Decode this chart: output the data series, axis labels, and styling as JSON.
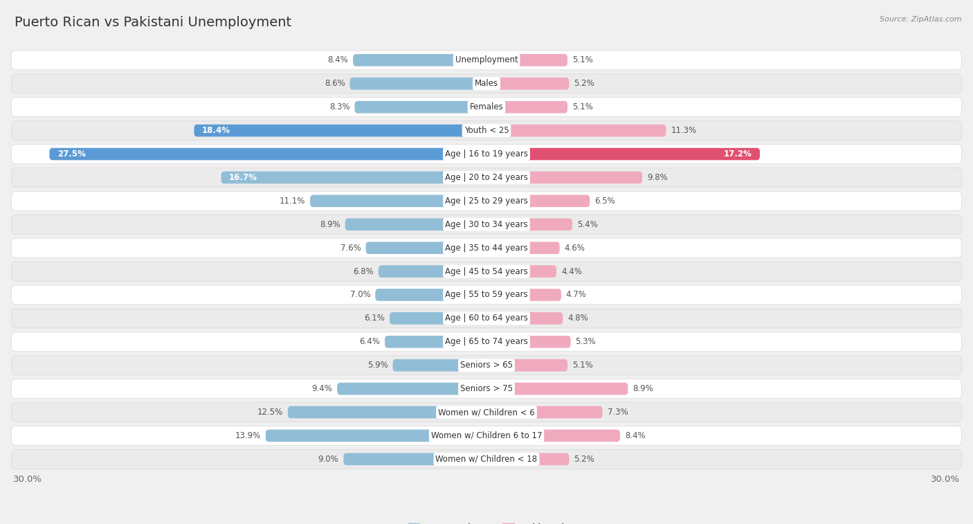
{
  "title": "Puerto Rican vs Pakistani Unemployment",
  "source": "Source: ZipAtlas.com",
  "categories": [
    "Unemployment",
    "Males",
    "Females",
    "Youth < 25",
    "Age | 16 to 19 years",
    "Age | 20 to 24 years",
    "Age | 25 to 29 years",
    "Age | 30 to 34 years",
    "Age | 35 to 44 years",
    "Age | 45 to 54 years",
    "Age | 55 to 59 years",
    "Age | 60 to 64 years",
    "Age | 65 to 74 years",
    "Seniors > 65",
    "Seniors > 75",
    "Women w/ Children < 6",
    "Women w/ Children 6 to 17",
    "Women w/ Children < 18"
  ],
  "puerto_rican": [
    8.4,
    8.6,
    8.3,
    18.4,
    27.5,
    16.7,
    11.1,
    8.9,
    7.6,
    6.8,
    7.0,
    6.1,
    6.4,
    5.9,
    9.4,
    12.5,
    13.9,
    9.0
  ],
  "pakistani": [
    5.1,
    5.2,
    5.1,
    11.3,
    17.2,
    9.8,
    6.5,
    5.4,
    4.6,
    4.4,
    4.7,
    4.8,
    5.3,
    5.1,
    8.9,
    7.3,
    8.4,
    5.2
  ],
  "pr_color_normal": "#92bdd6",
  "pr_color_highlight": "#5b9bd5",
  "pak_color_normal": "#f0aabe",
  "pak_color_highlight": "#e05070",
  "bg_outer": "#f0f0f0",
  "row_bg_white": "#ffffff",
  "row_bg_gray": "#ebebeb",
  "row_border": "#d8d8d8",
  "max_value": 30.0,
  "legend_pr": "Puerto Rican",
  "legend_pak": "Pakistani",
  "title_fontsize": 14,
  "label_fontsize": 8.5,
  "value_fontsize": 8.5
}
